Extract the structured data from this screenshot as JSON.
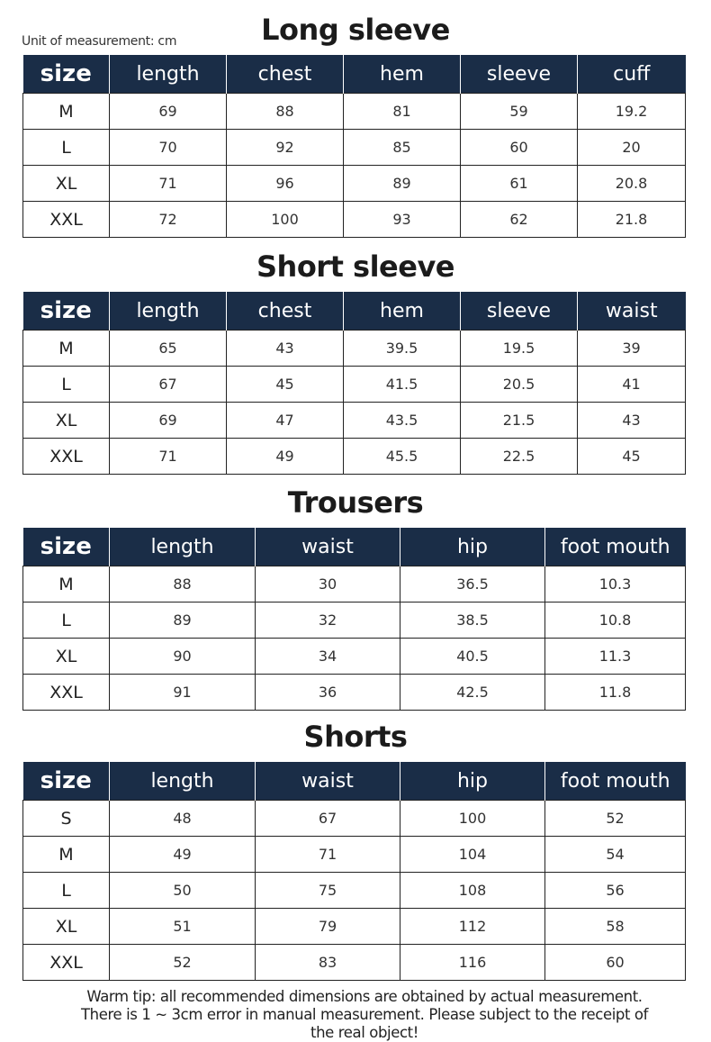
{
  "unit_label": "Unit of measurement: cm",
  "tables": [
    {
      "title": "Long sleeve",
      "headers": [
        "size",
        "length",
        "chest",
        "hem",
        "sleeve",
        "cuff"
      ],
      "rows": [
        [
          "M",
          "69",
          "88",
          "81",
          "59",
          "19.2"
        ],
        [
          "L",
          "70",
          "92",
          "85",
          "60",
          "20"
        ],
        [
          "XL",
          "71",
          "96",
          "89",
          "61",
          "20.8"
        ],
        [
          "XXL",
          "72",
          "100",
          "93",
          "62",
          "21.8"
        ]
      ]
    },
    {
      "title": "Short sleeve",
      "headers": [
        "size",
        "length",
        "chest",
        "hem",
        "sleeve",
        "waist"
      ],
      "rows": [
        [
          "M",
          "65",
          "43",
          "39.5",
          "19.5",
          "39"
        ],
        [
          "L",
          "67",
          "45",
          "41.5",
          "20.5",
          "41"
        ],
        [
          "XL",
          "69",
          "47",
          "43.5",
          "21.5",
          "43"
        ],
        [
          "XXL",
          "71",
          "49",
          "45.5",
          "22.5",
          "45"
        ]
      ]
    },
    {
      "title": "Trousers",
      "headers": [
        "size",
        "length",
        "waist",
        "hip",
        "foot mouth"
      ],
      "rows": [
        [
          "M",
          "88",
          "30",
          "36.5",
          "10.3"
        ],
        [
          "L",
          "89",
          "32",
          "38.5",
          "10.8"
        ],
        [
          "XL",
          "90",
          "34",
          "40.5",
          "11.3"
        ],
        [
          "XXL",
          "91",
          "36",
          "42.5",
          "11.8"
        ]
      ]
    },
    {
      "title": "Shorts",
      "headers": [
        "size",
        "length",
        "waist",
        "hip",
        "foot mouth"
      ],
      "rows": [
        [
          "S",
          "48",
          "67",
          "100",
          "52"
        ],
        [
          "M",
          "49",
          "71",
          "104",
          "54"
        ],
        [
          "L",
          "50",
          "75",
          "108",
          "56"
        ],
        [
          "XL",
          "51",
          "79",
          "112",
          "58"
        ],
        [
          "XXL",
          "52",
          "83",
          "116",
          "60"
        ]
      ]
    }
  ],
  "tip": {
    "line1": "Warm tip: all recommended dimensions are obtained by actual measurement.",
    "line2": "There is 1 ~ 3cm error in manual measurement. Please subject to the receipt of",
    "line3": "the real object!"
  },
  "colors": {
    "header_bg": "#1a2d47"
  }
}
